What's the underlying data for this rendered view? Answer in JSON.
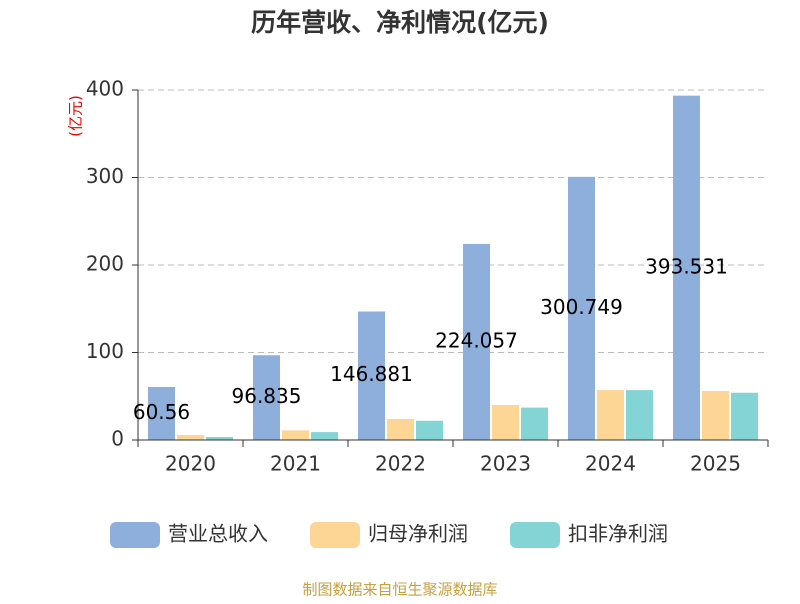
{
  "chart_data": {
    "type": "bar",
    "title": "历年营收、净利情况(亿元)",
    "y_label": "(亿元)",
    "source": "制图数据来自恒生聚源数据库",
    "categories": [
      "2020",
      "2021",
      "2022",
      "2023",
      "2024",
      "2025"
    ],
    "series": [
      {
        "name": "营业总收入",
        "color": "#8eaedb",
        "values": [
          60.56,
          96.835,
          146.881,
          224.057,
          300.749,
          393.531
        ],
        "show_labels": true
      },
      {
        "name": "归母净利润",
        "color": "#fdd595",
        "values": [
          5.7,
          11,
          24,
          40,
          57,
          56
        ]
      },
      {
        "name": "扣非净利润",
        "color": "#84d4d6",
        "values": [
          3.4,
          9,
          22,
          37,
          57,
          54
        ]
      }
    ],
    "ylim": [
      0,
      400
    ],
    "yticks": [
      0,
      100,
      200,
      300,
      400
    ],
    "grid": true
  }
}
